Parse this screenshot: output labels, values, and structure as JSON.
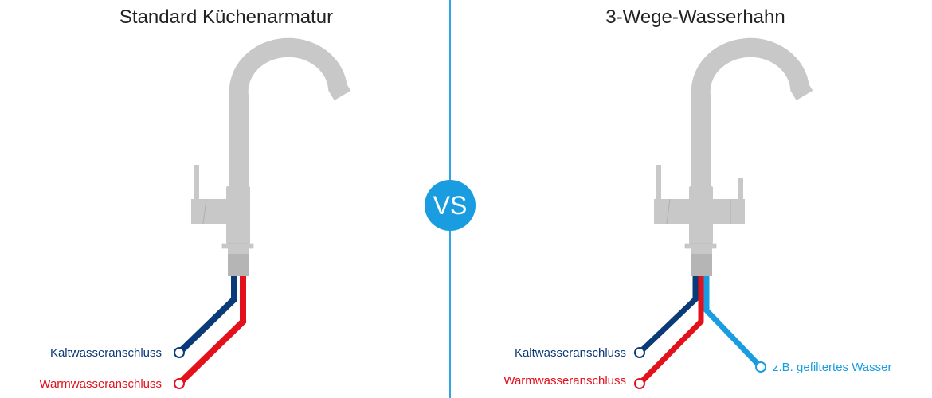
{
  "left": {
    "title": "Standard Küchenarmatur",
    "labels": {
      "cold": "Kaltwasseranschluss",
      "warm": "Warmwasseranschluss"
    }
  },
  "right": {
    "title": "3-Wege-Wasserhahn",
    "labels": {
      "cold": "Kaltwasseranschluss",
      "warm": "Warmwasseranschluss",
      "filtered": "z.B. gefiltertes Wasser"
    }
  },
  "vs_label": "VS",
  "colors": {
    "cold": "#0b3a78",
    "warm": "#e3111b",
    "filtered": "#1a9de0",
    "faucet": "#c8c8c8",
    "divider": "#2fa7e6"
  }
}
